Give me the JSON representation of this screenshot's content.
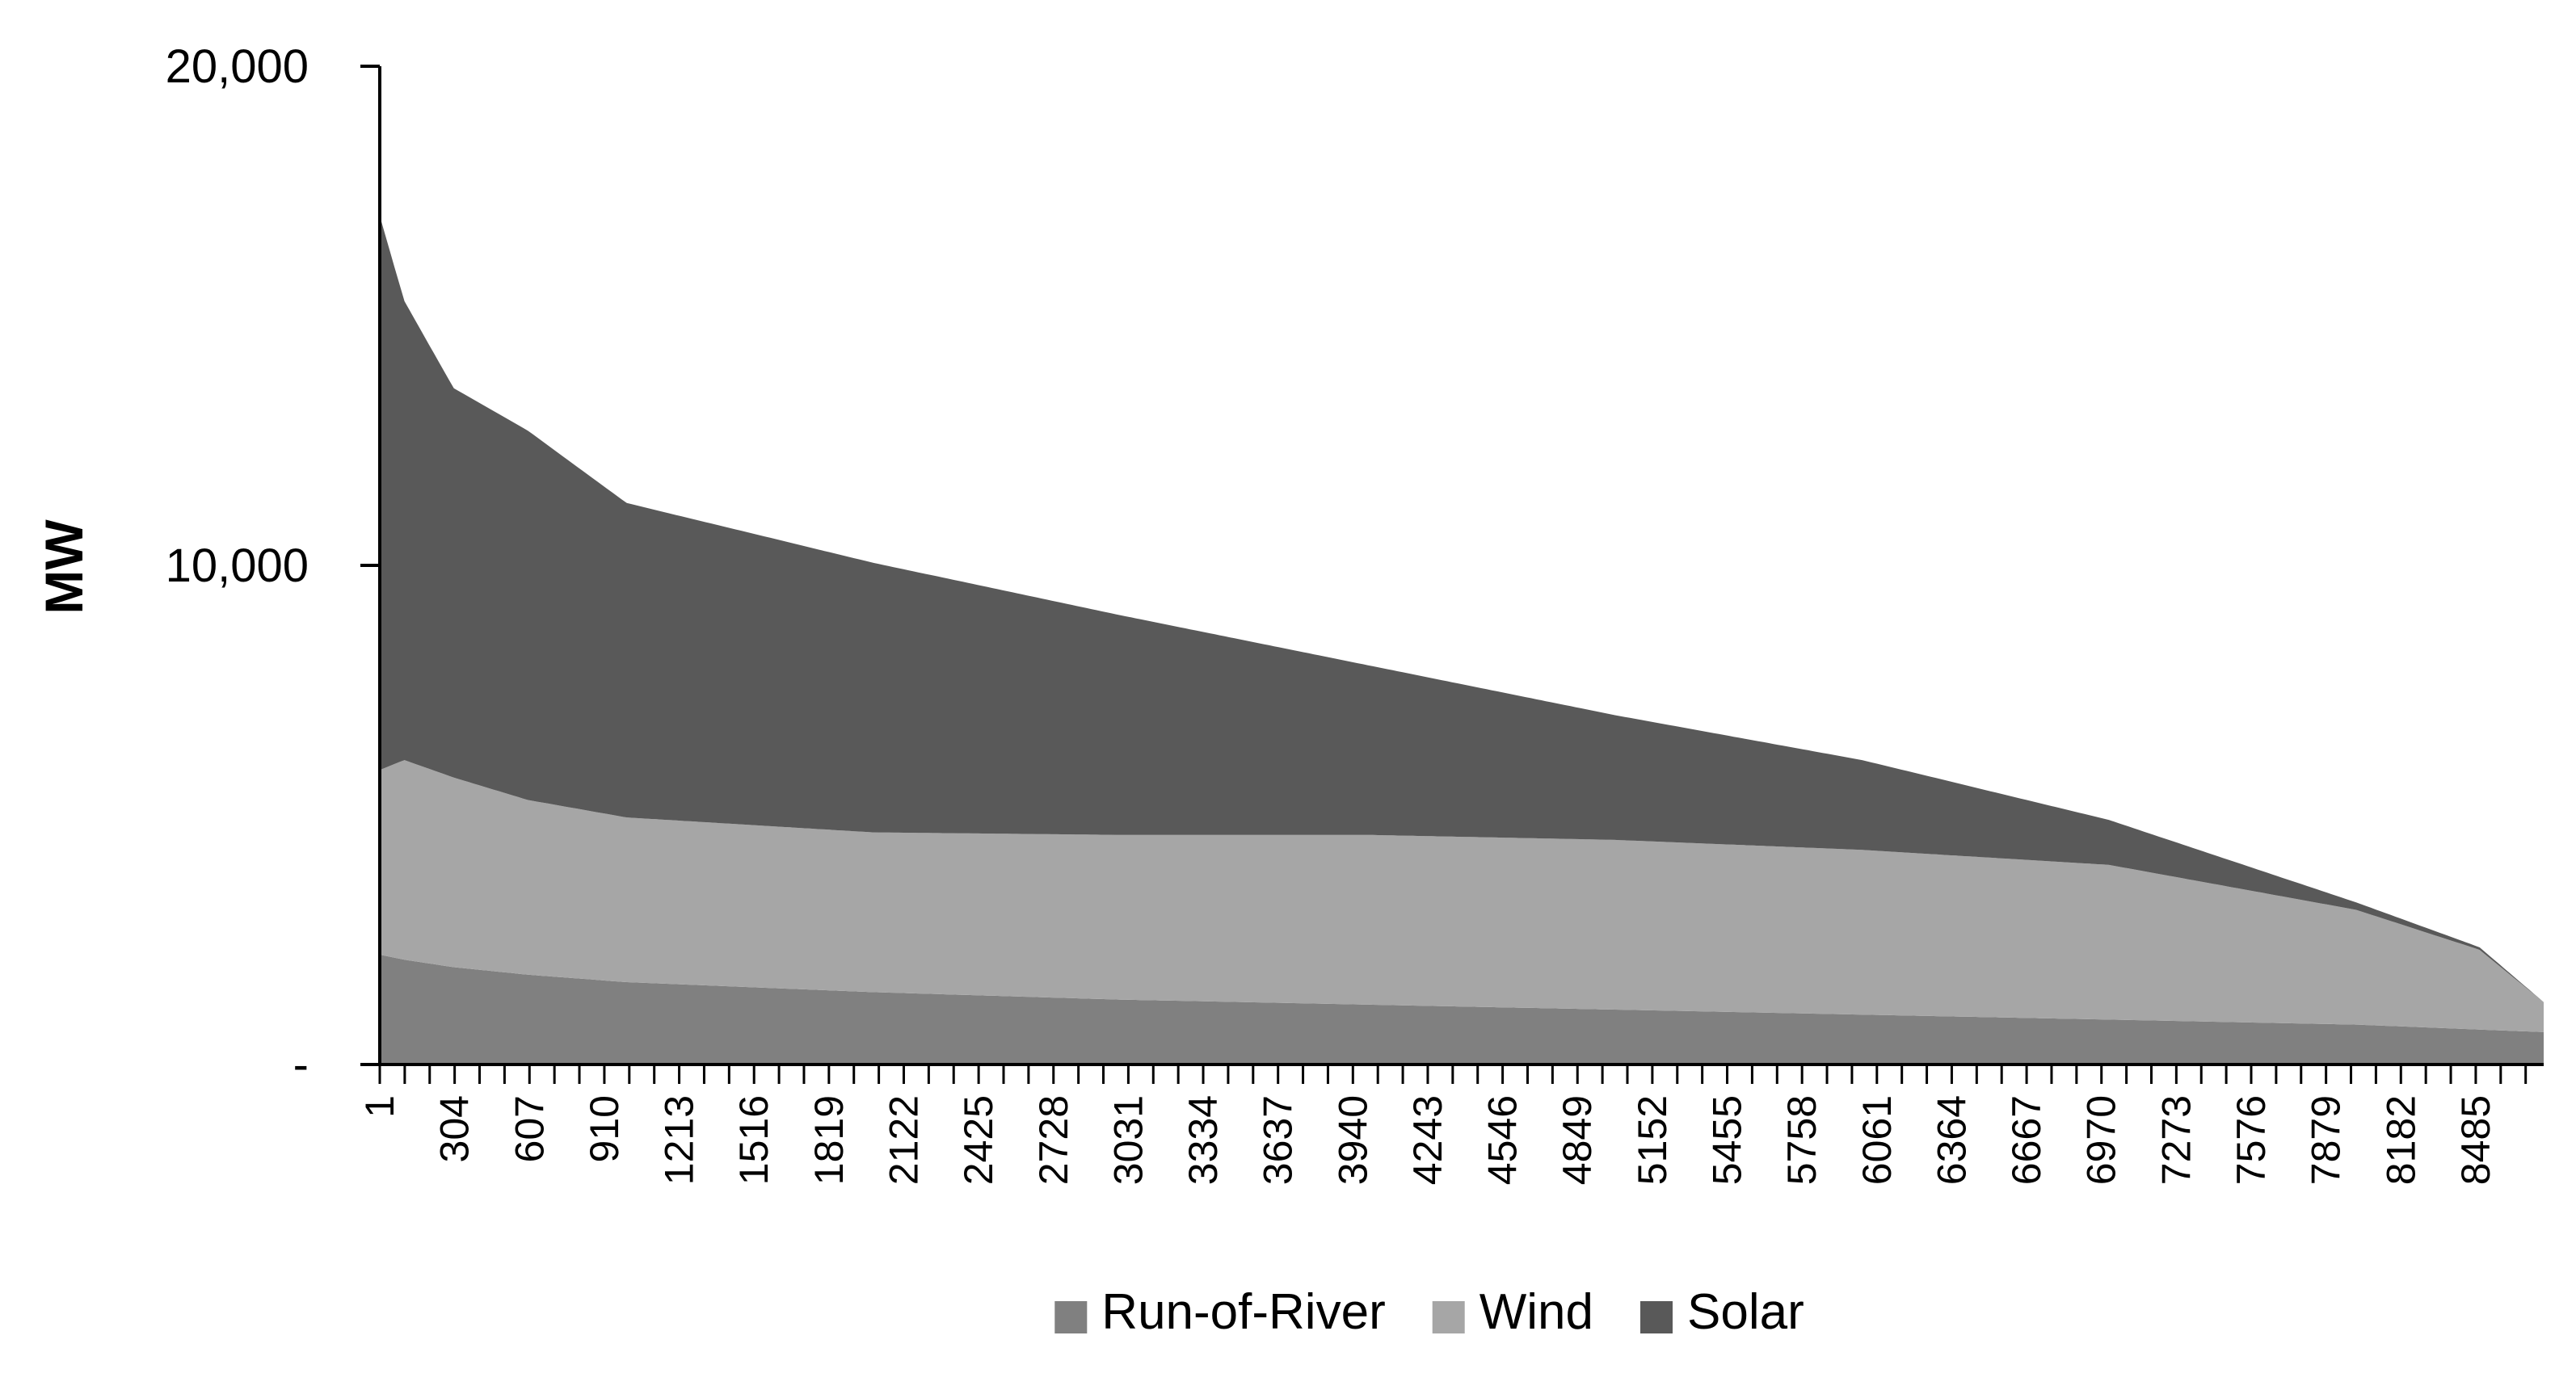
{
  "chart_data": {
    "type": "area",
    "stacked": true,
    "title": "",
    "xlabel": "",
    "ylabel": "MW",
    "x_range": [
      1,
      8760
    ],
    "ylim": [
      0,
      20000
    ],
    "y_ticks": [
      {
        "value": 0,
        "label": "-"
      },
      {
        "value": 10000,
        "label": "10,000"
      },
      {
        "value": 20000,
        "label": "20,000"
      }
    ],
    "x_tick_labels": [
      "1",
      "304",
      "607",
      "910",
      "1213",
      "1516",
      "1819",
      "2122",
      "2425",
      "2728",
      "3031",
      "3334",
      "3637",
      "3940",
      "4243",
      "4546",
      "4849",
      "5152",
      "5455",
      "5758",
      "6061",
      "6364",
      "6667",
      "6970",
      "7273",
      "7576",
      "7879",
      "8182",
      "8485"
    ],
    "x_tick_step": 303,
    "minor_tick_step": 101,
    "grid": false,
    "legend_position": "bottom",
    "series": [
      {
        "name": "Run-of-River",
        "color": "#808080",
        "x": [
          1,
          100,
          300,
          600,
          1000,
          2000,
          3000,
          4000,
          5000,
          6000,
          7000,
          8000,
          8500,
          8760
        ],
        "values": [
          2200,
          2100,
          1950,
          1800,
          1650,
          1450,
          1300,
          1200,
          1100,
          1000,
          900,
          800,
          700,
          650
        ]
      },
      {
        "name": "Wind",
        "color": "#a6a6a6",
        "x": [
          1,
          100,
          300,
          600,
          1000,
          2000,
          3000,
          4000,
          5000,
          6000,
          7000,
          8000,
          8500,
          8760
        ],
        "values": [
          3700,
          4000,
          3800,
          3500,
          3300,
          3200,
          3300,
          3400,
          3400,
          3300,
          3100,
          2300,
          1600,
          600
        ]
      },
      {
        "name": "Solar",
        "color": "#595959",
        "x": [
          1,
          100,
          300,
          600,
          1000,
          2000,
          3000,
          4000,
          5000,
          6000,
          7000,
          8000,
          8500,
          8760
        ],
        "values": [
          11100,
          9200,
          7800,
          7400,
          6300,
          5400,
          4400,
          3400,
          2500,
          1800,
          900,
          150,
          50,
          0
        ]
      }
    ],
    "total_envelope": {
      "x": [
        1,
        5,
        20,
        50,
        100,
        300,
        600,
        1000,
        2000,
        3000,
        4000,
        5000,
        6000,
        7000,
        8000,
        8500,
        8760
      ],
      "values": [
        17000,
        16500,
        16000,
        15400,
        15300,
        13550,
        12700,
        11250,
        10050,
        9000,
        8000,
        7000,
        6100,
        4900,
        3250,
        2350,
        1250
      ]
    }
  }
}
